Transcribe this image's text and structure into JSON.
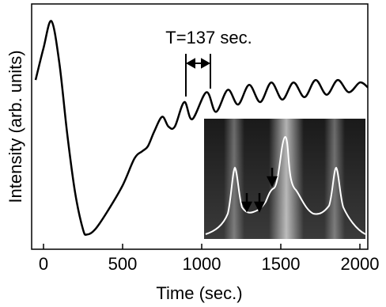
{
  "chart_data": {
    "type": "line",
    "x_label": "Time (sec.)",
    "y_label": "Intensity (arb. units)",
    "annotation": "T=137 sec.",
    "x": [
      -50,
      0,
      50,
      100,
      150,
      200,
      250,
      275,
      325,
      400,
      500,
      575,
      625,
      660,
      700,
      750,
      790,
      830,
      890,
      940,
      1030,
      1090,
      1165,
      1230,
      1300,
      1370,
      1440,
      1510,
      1580,
      1650,
      1720,
      1790,
      1860,
      1930,
      2000,
      2050
    ],
    "series": [
      {
        "color": "#000000",
        "values": [
          69,
          82,
          93,
          76,
          47,
          23,
          8,
          6,
          8,
          15,
          26,
          37,
          40,
          42,
          48,
          54,
          50,
          50,
          60,
          53,
          64,
          56,
          65,
          59,
          67,
          60,
          68,
          61,
          68,
          62,
          69,
          63,
          69,
          64,
          68,
          66
        ]
      }
    ],
    "xlim": [
      -75,
      2050
    ],
    "ylim": [
      0,
      100
    ],
    "xticks": [
      0,
      500,
      1000,
      1500,
      2000
    ]
  }
}
